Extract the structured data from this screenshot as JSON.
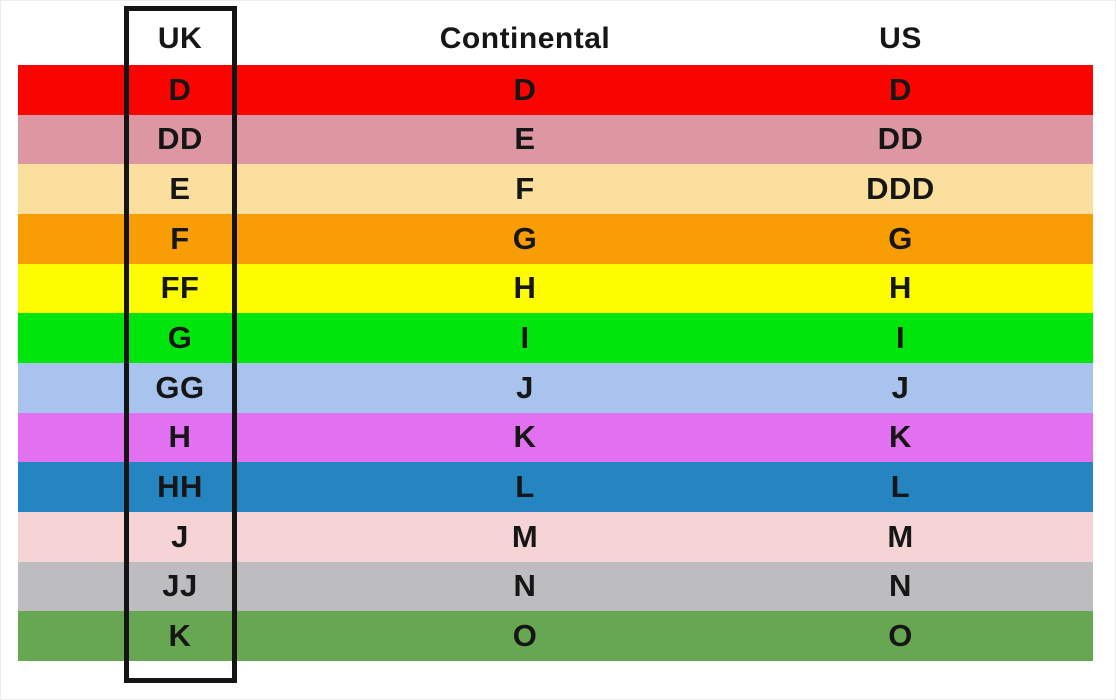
{
  "page": {
    "background_color": "#ffffff",
    "text_color": "#161616"
  },
  "chart_data": {
    "type": "table",
    "title": "",
    "columns": [
      "UK",
      "Continental",
      "US"
    ],
    "rows": [
      {
        "cells": [
          "D",
          "D",
          "D"
        ],
        "color": "#fa0400"
      },
      {
        "cells": [
          "DD",
          "E",
          "DD"
        ],
        "color": "#dd97a2"
      },
      {
        "cells": [
          "E",
          "F",
          "DDD"
        ],
        "color": "#fadf9e"
      },
      {
        "cells": [
          "F",
          "G",
          "G"
        ],
        "color": "#f99d04"
      },
      {
        "cells": [
          "FF",
          "H",
          "H"
        ],
        "color": "#fdfd00"
      },
      {
        "cells": [
          "G",
          "I",
          "I"
        ],
        "color": "#00e60d"
      },
      {
        "cells": [
          "GG",
          "J",
          "J"
        ],
        "color": "#a7c3ee"
      },
      {
        "cells": [
          "H",
          "K",
          "K"
        ],
        "color": "#e271f1"
      },
      {
        "cells": [
          "HH",
          "L",
          "L"
        ],
        "color": "#2585c1"
      },
      {
        "cells": [
          "J",
          "M",
          "M"
        ],
        "color": "#f6d3d4"
      },
      {
        "cells": [
          "JJ",
          "N",
          "N"
        ],
        "color": "#bdbcbf"
      },
      {
        "cells": [
          "K",
          "O",
          "O"
        ],
        "color": "#67a751"
      }
    ],
    "highlight": {
      "column": "UK",
      "border_color": "#141414"
    },
    "layout": {
      "grid": "off",
      "legend": "none"
    }
  }
}
